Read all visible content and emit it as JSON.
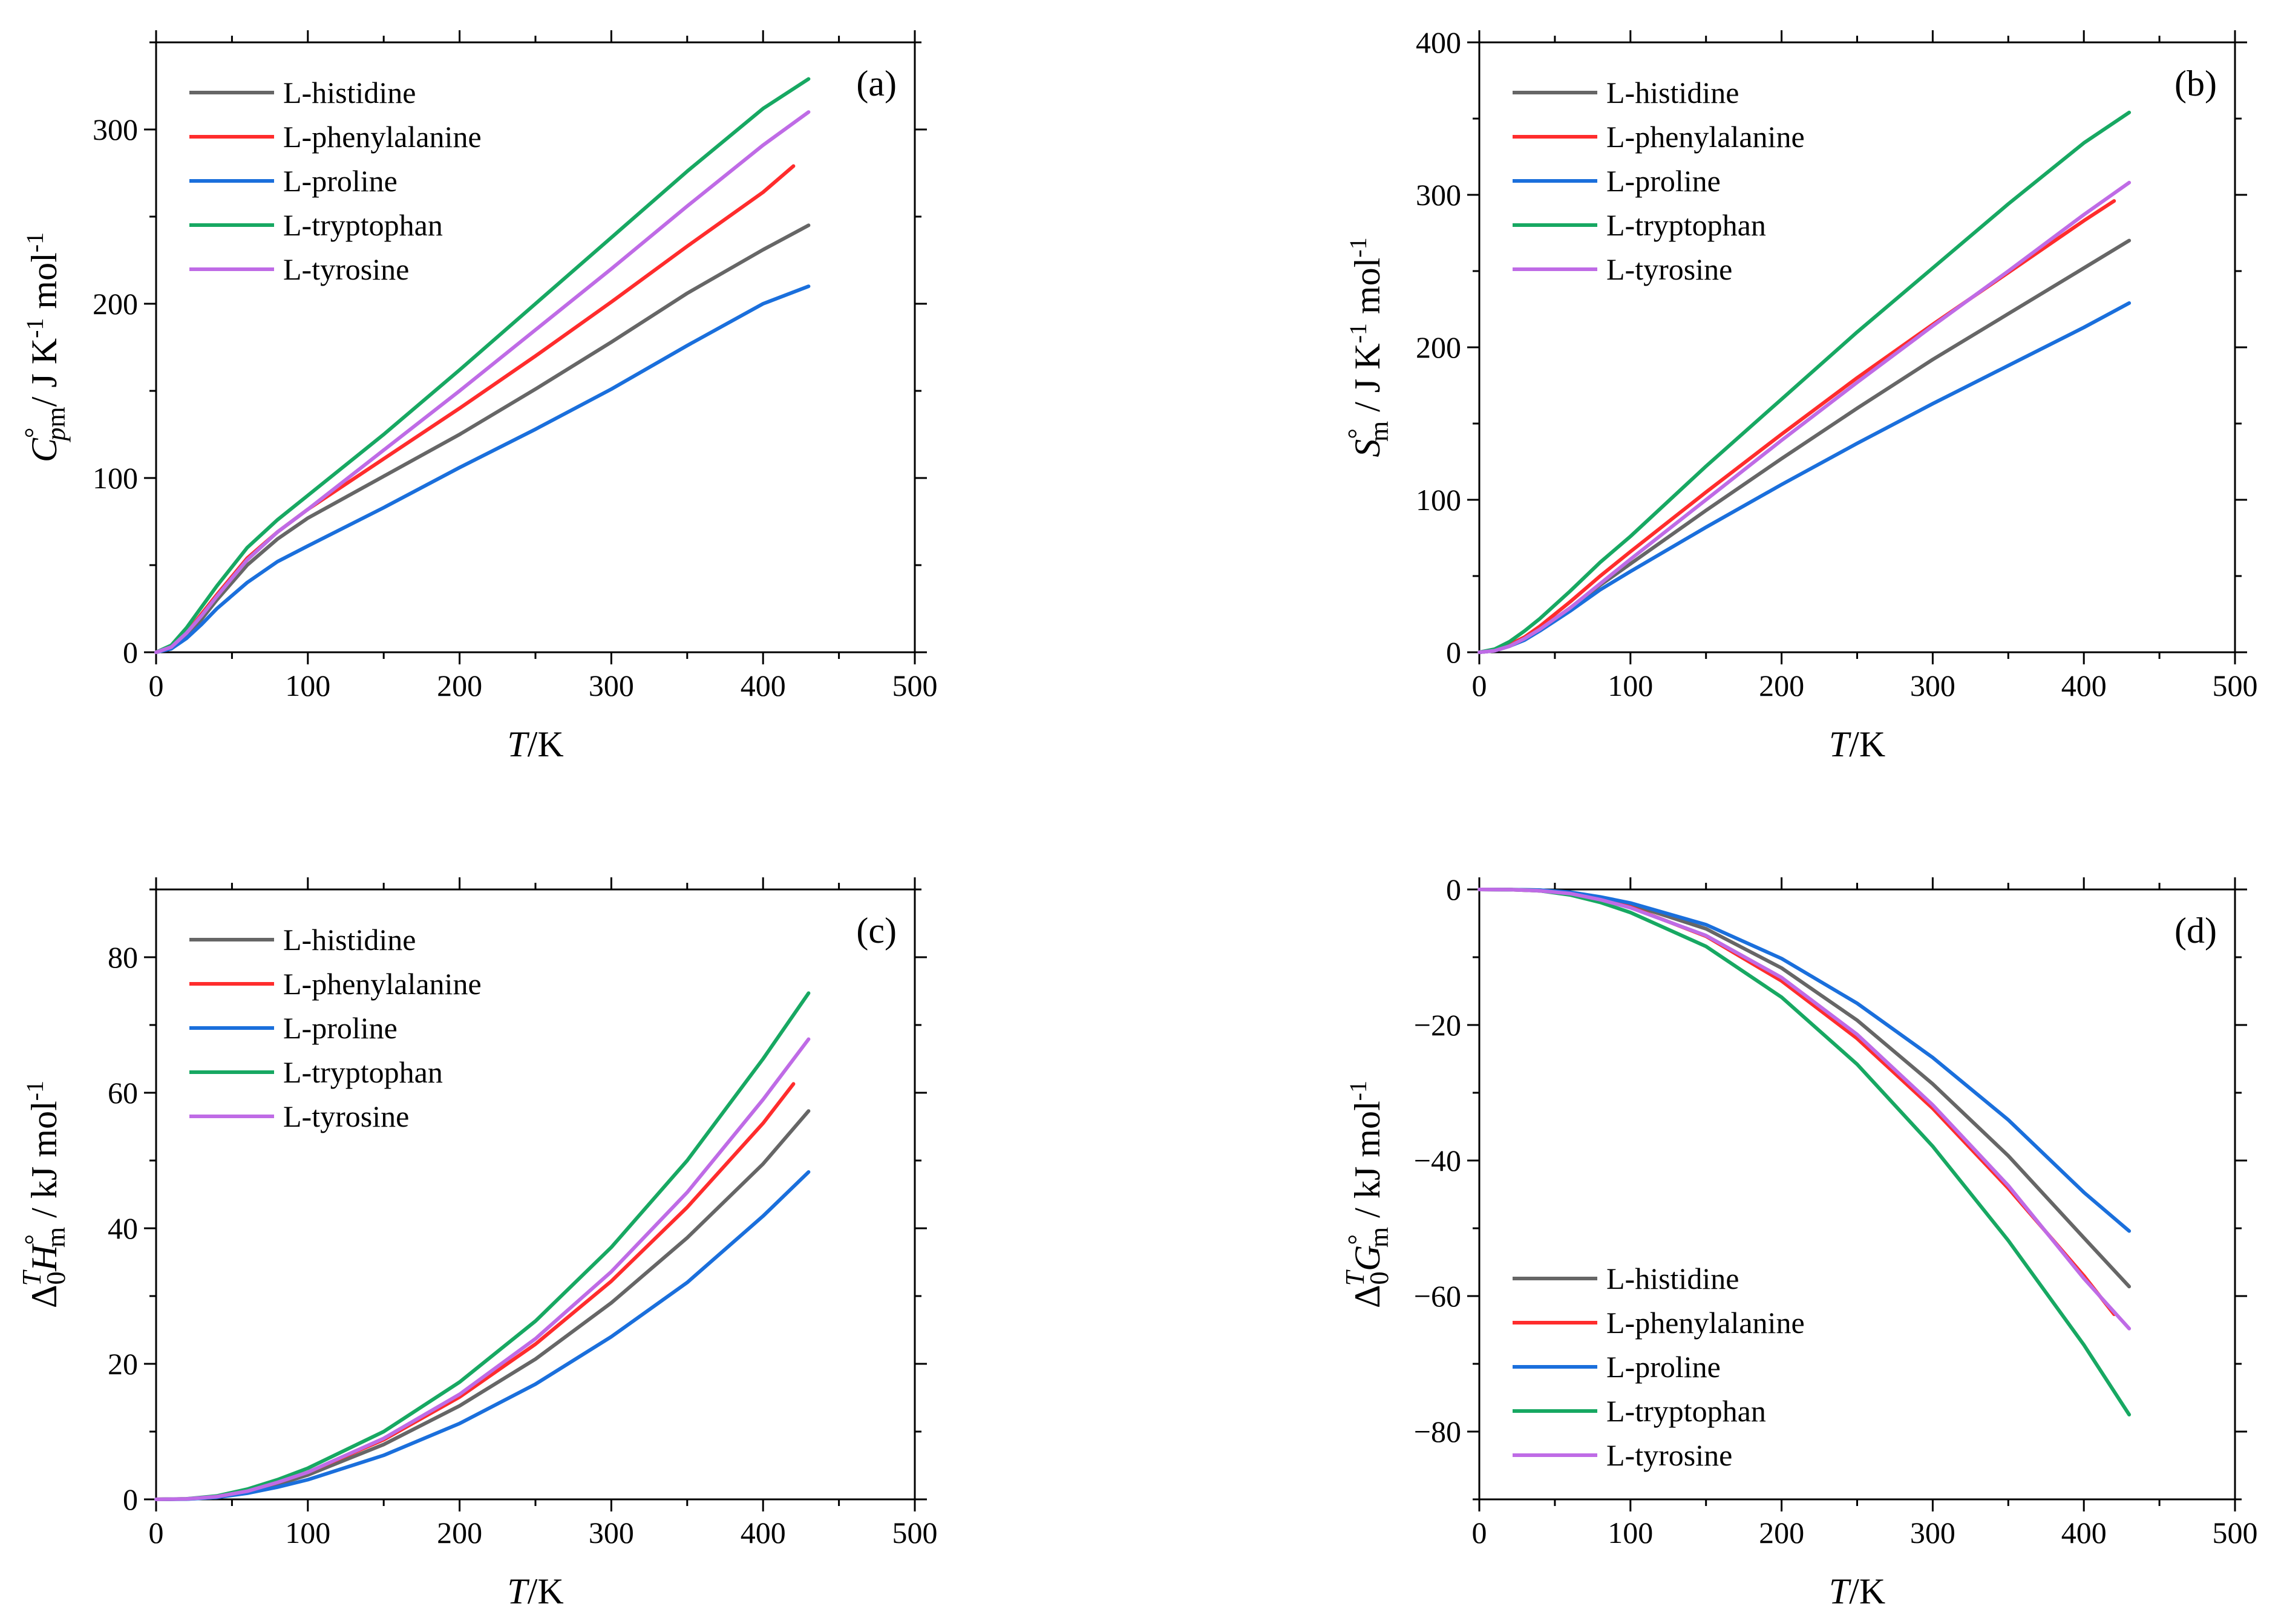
{
  "colors": {
    "L-histidine": "#666666",
    "L-phenylalanine": "#ff2c2c",
    "L-proline": "#1a6fdc",
    "L-tryptophan": "#17a862",
    "L-tyrosine": "#bf6be6"
  },
  "chart_data": [
    {
      "type": "line",
      "panel_label": "(a)",
      "xlabel": "T/K",
      "ylabel": "C°pm / J K⁻¹ mol⁻¹",
      "xlim": [
        0,
        500
      ],
      "ylim": [
        0,
        350
      ],
      "xticks": [
        0,
        100,
        200,
        300,
        400,
        500
      ],
      "yticks": [
        0,
        100,
        200,
        300
      ],
      "legend_position": "top-left",
      "grid": false,
      "series": [
        {
          "name": "L-histidine",
          "x": [
            0,
            10,
            20,
            30,
            40,
            60,
            80,
            100,
            150,
            200,
            250,
            300,
            350,
            400,
            430
          ],
          "y": [
            0,
            2,
            9,
            19,
            30,
            50,
            65,
            77,
            101,
            125,
            151,
            178,
            206,
            231,
            245
          ]
        },
        {
          "name": "L-phenylalanine",
          "x": [
            0,
            10,
            20,
            30,
            40,
            60,
            80,
            100,
            150,
            200,
            250,
            300,
            350,
            400,
            420
          ],
          "y": [
            0,
            3,
            11,
            22,
            33,
            54,
            69,
            82,
            111,
            140,
            170,
            201,
            233,
            264,
            279
          ]
        },
        {
          "name": "L-proline",
          "x": [
            0,
            10,
            20,
            30,
            40,
            60,
            80,
            100,
            150,
            200,
            250,
            300,
            350,
            400,
            430
          ],
          "y": [
            0,
            2,
            8,
            16,
            25,
            40,
            52,
            61,
            83,
            106,
            128,
            151,
            176,
            200,
            210
          ]
        },
        {
          "name": "L-tryptophan",
          "x": [
            0,
            10,
            20,
            30,
            40,
            60,
            80,
            100,
            150,
            200,
            250,
            300,
            350,
            400,
            430
          ],
          "y": [
            0,
            4,
            14,
            26,
            38,
            60,
            76,
            90,
            125,
            162,
            200,
            238,
            276,
            312,
            329
          ]
        },
        {
          "name": "L-tyrosine",
          "x": [
            0,
            10,
            20,
            30,
            40,
            60,
            80,
            100,
            150,
            200,
            250,
            300,
            350,
            400,
            430
          ],
          "y": [
            0,
            3,
            11,
            21,
            32,
            53,
            69,
            82,
            116,
            150,
            185,
            220,
            256,
            291,
            310
          ]
        }
      ]
    },
    {
      "type": "line",
      "panel_label": "(b)",
      "xlabel": "T/K",
      "ylabel": "S°m / J K⁻¹ mol⁻¹",
      "xlim": [
        0,
        500
      ],
      "ylim": [
        0,
        400
      ],
      "xticks": [
        0,
        100,
        200,
        300,
        400,
        500
      ],
      "yticks": [
        0,
        100,
        200,
        300,
        400
      ],
      "legend_position": "top-left",
      "grid": false,
      "series": [
        {
          "name": "L-histidine",
          "x": [
            0,
            10,
            20,
            30,
            40,
            60,
            80,
            100,
            150,
            200,
            250,
            300,
            350,
            400,
            430
          ],
          "y": [
            0,
            1,
            4,
            9,
            15,
            29,
            44,
            58,
            93,
            127,
            160,
            192,
            222,
            252,
            270
          ]
        },
        {
          "name": "L-phenylalanine",
          "x": [
            0,
            10,
            20,
            30,
            40,
            60,
            80,
            100,
            150,
            200,
            250,
            300,
            350,
            400,
            420
          ],
          "y": [
            0,
            1,
            5,
            10,
            17,
            33,
            50,
            66,
            105,
            143,
            180,
            215,
            249,
            283,
            296
          ]
        },
        {
          "name": "L-proline",
          "x": [
            0,
            10,
            20,
            30,
            40,
            60,
            80,
            100,
            150,
            200,
            250,
            300,
            350,
            400,
            430
          ],
          "y": [
            0,
            1,
            4,
            8,
            14,
            27,
            41,
            53,
            82,
            110,
            137,
            163,
            188,
            213,
            229
          ]
        },
        {
          "name": "L-tryptophan",
          "x": [
            0,
            10,
            20,
            30,
            40,
            60,
            80,
            100,
            150,
            200,
            250,
            300,
            350,
            400,
            430
          ],
          "y": [
            0,
            2,
            7,
            14,
            22,
            40,
            59,
            76,
            122,
            166,
            210,
            252,
            294,
            334,
            354
          ]
        },
        {
          "name": "L-tyrosine",
          "x": [
            0,
            10,
            20,
            30,
            40,
            60,
            80,
            100,
            150,
            200,
            250,
            300,
            350,
            400,
            430
          ],
          "y": [
            0,
            1,
            4,
            9,
            15,
            29,
            45,
            61,
            100,
            139,
            177,
            214,
            250,
            287,
            308
          ]
        }
      ]
    },
    {
      "type": "line",
      "panel_label": "(c)",
      "xlabel": "T/K",
      "ylabel": "Δ₀ᵀH°m / kJ mol⁻¹",
      "xlim": [
        0,
        500
      ],
      "ylim": [
        0,
        90
      ],
      "xticks": [
        0,
        100,
        200,
        300,
        400,
        500
      ],
      "yticks": [
        0,
        20,
        40,
        60,
        80
      ],
      "legend_position": "top-left",
      "grid": false,
      "series": [
        {
          "name": "L-histidine",
          "x": [
            0,
            20,
            40,
            60,
            80,
            100,
            150,
            200,
            250,
            300,
            350,
            400,
            430
          ],
          "y": [
            0,
            0.05,
            0.3,
            1.1,
            2.2,
            3.6,
            8.1,
            13.8,
            20.7,
            29.0,
            38.6,
            49.5,
            57.3
          ]
        },
        {
          "name": "L-phenylalanine",
          "x": [
            0,
            20,
            40,
            60,
            80,
            100,
            150,
            200,
            250,
            300,
            350,
            400,
            420
          ],
          "y": [
            0,
            0.06,
            0.4,
            1.2,
            2.5,
            4.0,
            8.8,
            15.1,
            22.9,
            32.2,
            43.1,
            55.5,
            61.3
          ]
        },
        {
          "name": "L-proline",
          "x": [
            0,
            20,
            40,
            60,
            80,
            100,
            150,
            200,
            250,
            300,
            350,
            400,
            430
          ],
          "y": [
            0,
            0.04,
            0.3,
            0.9,
            1.8,
            2.9,
            6.5,
            11.2,
            17.0,
            24.0,
            32.0,
            41.8,
            48.3
          ]
        },
        {
          "name": "L-tryptophan",
          "x": [
            0,
            20,
            40,
            60,
            80,
            100,
            150,
            200,
            250,
            300,
            350,
            400,
            430
          ],
          "y": [
            0,
            0.08,
            0.5,
            1.5,
            2.9,
            4.6,
            10.0,
            17.3,
            26.3,
            37.2,
            50.0,
            65.0,
            74.7
          ]
        },
        {
          "name": "L-tyrosine",
          "x": [
            0,
            20,
            40,
            60,
            80,
            100,
            150,
            200,
            250,
            300,
            350,
            400,
            430
          ],
          "y": [
            0,
            0.06,
            0.4,
            1.2,
            2.5,
            4.0,
            9.0,
            15.5,
            23.7,
            33.6,
            45.3,
            59.0,
            67.9
          ]
        }
      ]
    },
    {
      "type": "line",
      "panel_label": "(d)",
      "xlabel": "T/K",
      "ylabel": "Δ₀ᵀG°m / kJ mol⁻¹",
      "xlim": [
        0,
        500
      ],
      "ylim": [
        -90,
        0
      ],
      "xticks": [
        0,
        100,
        200,
        300,
        400,
        500
      ],
      "yticks": [
        0,
        -20,
        -40,
        -60,
        -80
      ],
      "legend_position": "bottom-left",
      "grid": false,
      "series": [
        {
          "name": "L-histidine",
          "x": [
            0,
            20,
            40,
            60,
            80,
            100,
            150,
            200,
            250,
            300,
            350,
            400,
            430
          ],
          "y": [
            0,
            -0.02,
            -0.1,
            -0.5,
            -1.3,
            -2.2,
            -5.8,
            -11.6,
            -19.3,
            -28.7,
            -39.3,
            -51.4,
            -58.6
          ]
        },
        {
          "name": "L-phenylalanine",
          "x": [
            0,
            20,
            40,
            60,
            80,
            100,
            150,
            200,
            250,
            300,
            350,
            400,
            420
          ],
          "y": [
            0,
            -0.02,
            -0.2,
            -0.6,
            -1.5,
            -2.6,
            -6.9,
            -13.5,
            -22.0,
            -32.3,
            -44.1,
            -57.0,
            -62.7
          ]
        },
        {
          "name": "L-proline",
          "x": [
            0,
            20,
            40,
            60,
            80,
            100,
            150,
            200,
            250,
            300,
            350,
            400,
            430
          ],
          "y": [
            0,
            -0.02,
            -0.1,
            -0.4,
            -1.1,
            -2.0,
            -5.2,
            -10.2,
            -16.8,
            -24.8,
            -34.0,
            -44.7,
            -50.4
          ]
        },
        {
          "name": "L-tryptophan",
          "x": [
            0,
            20,
            40,
            60,
            80,
            100,
            150,
            200,
            250,
            300,
            350,
            400,
            430
          ],
          "y": [
            0,
            -0.03,
            -0.2,
            -0.8,
            -1.9,
            -3.4,
            -8.4,
            -15.9,
            -25.8,
            -37.9,
            -51.8,
            -67.2,
            -77.5
          ]
        },
        {
          "name": "L-tyrosine",
          "x": [
            0,
            20,
            40,
            60,
            80,
            100,
            150,
            200,
            250,
            300,
            350,
            400,
            430
          ],
          "y": [
            0,
            -0.02,
            -0.2,
            -0.6,
            -1.5,
            -2.7,
            -6.8,
            -13.0,
            -21.4,
            -31.8,
            -43.7,
            -57.4,
            -64.8
          ]
        }
      ]
    }
  ]
}
